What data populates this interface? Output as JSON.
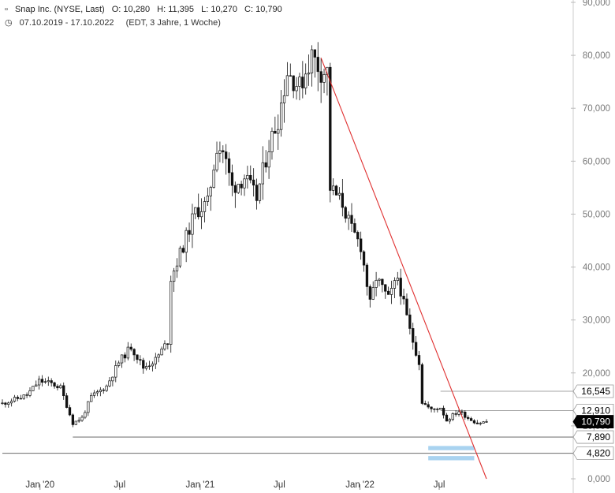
{
  "header": {
    "title": "Snap Inc. (NYSE, Last)",
    "open": "O: 10,280",
    "high": "H: 11,395",
    "low": "L: 10,270",
    "close": "C: 10,790",
    "date_range": "07.10.2019 - 17.10.2022",
    "period": "(EDT, 3 Jahre, 1 Woche)"
  },
  "colors": {
    "candle": "#111111",
    "trendline": "#e03030",
    "support_zone": "#a9d3f0",
    "level_line": "#555555",
    "axis_text": "#7a7a7a"
  },
  "chart_data": {
    "type": "candlestick",
    "x_start": "2019-10-07",
    "x_end": "2022-10-17",
    "interval": "1 week",
    "ylim": [
      0,
      90
    ],
    "y_ticks": [
      "0,000",
      "10,000",
      "20,000",
      "30,000",
      "40,000",
      "50,000",
      "60,000",
      "70,000",
      "80,000",
      "90,000"
    ],
    "x_ticks": [
      {
        "label": "Jan '20",
        "date": "2020-01-01"
      },
      {
        "label": "Jul",
        "date": "2020-07-01"
      },
      {
        "label": "Jan '21",
        "date": "2021-01-01"
      },
      {
        "label": "Jul",
        "date": "2021-07-01"
      },
      {
        "label": "Jan '22",
        "date": "2022-01-01"
      },
      {
        "label": "Jul",
        "date": "2022-07-01"
      }
    ],
    "close_path": [
      [
        "2019-10-07",
        14.2
      ],
      [
        "2019-11-04",
        15.0
      ],
      [
        "2019-12-02",
        15.8
      ],
      [
        "2019-12-30",
        18.5
      ],
      [
        "2020-01-27",
        18.0
      ],
      [
        "2020-02-17",
        17.2
      ],
      [
        "2020-03-16",
        10.5
      ],
      [
        "2020-04-06",
        11.5
      ],
      [
        "2020-04-27",
        15.5
      ],
      [
        "2020-06-01",
        17.5
      ],
      [
        "2020-06-29",
        22.0
      ],
      [
        "2020-07-27",
        25.0
      ],
      [
        "2020-08-24",
        21.0
      ],
      [
        "2020-09-21",
        22.5
      ],
      [
        "2020-10-19",
        26.0
      ],
      [
        "2020-10-26",
        38.0
      ],
      [
        "2020-11-23",
        44.0
      ],
      [
        "2020-12-21",
        50.5
      ],
      [
        "2021-01-18",
        52.0
      ],
      [
        "2021-02-08",
        63.0
      ],
      [
        "2021-02-22",
        62.0
      ],
      [
        "2021-03-15",
        55.0
      ],
      [
        "2021-04-12",
        57.0
      ],
      [
        "2021-05-10",
        53.0
      ],
      [
        "2021-06-07",
        63.0
      ],
      [
        "2021-06-28",
        68.0
      ],
      [
        "2021-07-19",
        77.0
      ],
      [
        "2021-08-16",
        74.0
      ],
      [
        "2021-09-13",
        80.0
      ],
      [
        "2021-10-04",
        77.0
      ],
      [
        "2021-10-18",
        77.0
      ],
      [
        "2021-10-25",
        55.0
      ],
      [
        "2021-11-22",
        52.0
      ],
      [
        "2021-12-13",
        47.0
      ],
      [
        "2022-01-03",
        44.0
      ],
      [
        "2022-01-24",
        33.0
      ],
      [
        "2022-02-07",
        38.0
      ],
      [
        "2022-03-07",
        34.0
      ],
      [
        "2022-03-28",
        38.0
      ],
      [
        "2022-04-25",
        28.0
      ],
      [
        "2022-05-16",
        22.0
      ],
      [
        "2022-05-23",
        14.5
      ],
      [
        "2022-06-13",
        13.0
      ],
      [
        "2022-07-04",
        13.5
      ],
      [
        "2022-07-18",
        11.0
      ],
      [
        "2022-08-01",
        12.0
      ],
      [
        "2022-08-15",
        12.8
      ],
      [
        "2022-09-05",
        11.5
      ],
      [
        "2022-09-26",
        10.5
      ],
      [
        "2022-10-17",
        10.8
      ]
    ],
    "trendline": {
      "from": [
        "2021-10-04",
        79.5
      ],
      "to": [
        "2022-10-17",
        0.0
      ]
    },
    "levels": [
      {
        "label": "16,545",
        "value": 16.545,
        "from": "2022-07-04",
        "box": "outline",
        "style": "thin"
      },
      {
        "label": "12,910",
        "value": 12.91,
        "from": "2022-07-04",
        "box": "outline",
        "style": "thin"
      },
      {
        "label": "10,790",
        "value": 10.79,
        "from": "2022-10-17",
        "box": "filled",
        "style": "none"
      },
      {
        "label": "7,890",
        "value": 7.89,
        "from": "2020-03-16",
        "box": "outline",
        "style": "line"
      },
      {
        "label": "4,820",
        "value": 4.82,
        "from": "2019-10-07",
        "box": "outline",
        "style": "line"
      }
    ],
    "support_zone": {
      "from": "2022-06-06",
      "to": "2022-09-19",
      "bands": [
        [
          5.4,
          6.2
        ],
        [
          3.5,
          4.3
        ]
      ]
    }
  }
}
